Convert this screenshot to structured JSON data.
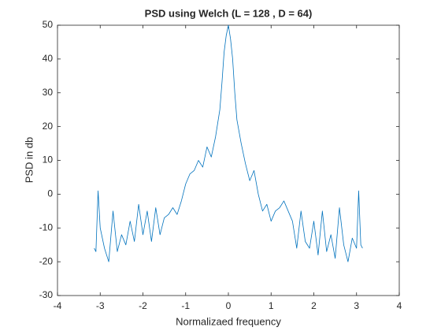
{
  "chart_data": {
    "type": "line",
    "title": "PSD using Welch (L = 128 , D = 64)",
    "xlabel": "Normalizaed frequency",
    "ylabel": "PSD in db",
    "xlim": [
      -4,
      4
    ],
    "xticks": [
      -4,
      -3,
      -2,
      -1,
      0,
      1,
      2,
      3,
      4
    ],
    "ylim": [
      -30,
      50
    ],
    "yticks": [
      -30,
      -20,
      -10,
      0,
      10,
      20,
      30,
      40,
      50
    ],
    "series": [
      {
        "name": "PSD",
        "color": "#0072bd",
        "x": [
          -3.14,
          -3.1,
          -3.05,
          -3.0,
          -2.9,
          -2.8,
          -2.7,
          -2.6,
          -2.5,
          -2.4,
          -2.3,
          -2.2,
          -2.1,
          -2.0,
          -1.9,
          -1.8,
          -1.7,
          -1.6,
          -1.5,
          -1.4,
          -1.3,
          -1.2,
          -1.1,
          -1.0,
          -0.9,
          -0.8,
          -0.7,
          -0.6,
          -0.5,
          -0.4,
          -0.3,
          -0.2,
          -0.15,
          -0.1,
          -0.05,
          0,
          0.05,
          0.1,
          0.15,
          0.2,
          0.3,
          0.4,
          0.5,
          0.6,
          0.7,
          0.8,
          0.9,
          1.0,
          1.1,
          1.2,
          1.3,
          1.4,
          1.5,
          1.6,
          1.7,
          1.8,
          1.9,
          2.0,
          2.1,
          2.2,
          2.3,
          2.4,
          2.5,
          2.6,
          2.7,
          2.8,
          2.9,
          3.0,
          3.05,
          3.1,
          3.14
        ],
        "values": [
          -16,
          -17,
          1,
          -10,
          -16,
          -20,
          -5,
          -17,
          -12,
          -15,
          -8,
          -14,
          -3,
          -12,
          -5,
          -14,
          -4,
          -12,
          -7,
          -6,
          -4,
          -6,
          -2,
          3,
          6,
          7,
          10,
          8,
          14,
          11,
          17,
          25,
          33,
          42,
          47,
          50,
          46,
          40,
          30,
          22,
          15,
          9,
          4,
          7,
          0,
          -5,
          -3,
          -8,
          -5,
          -4,
          -2,
          -5,
          -8,
          -16,
          -5,
          -14,
          -16,
          -8,
          -18,
          -5,
          -17,
          -12,
          -19,
          -4,
          -15,
          -20,
          -13,
          -16,
          1,
          -15,
          -16
        ]
      }
    ]
  }
}
